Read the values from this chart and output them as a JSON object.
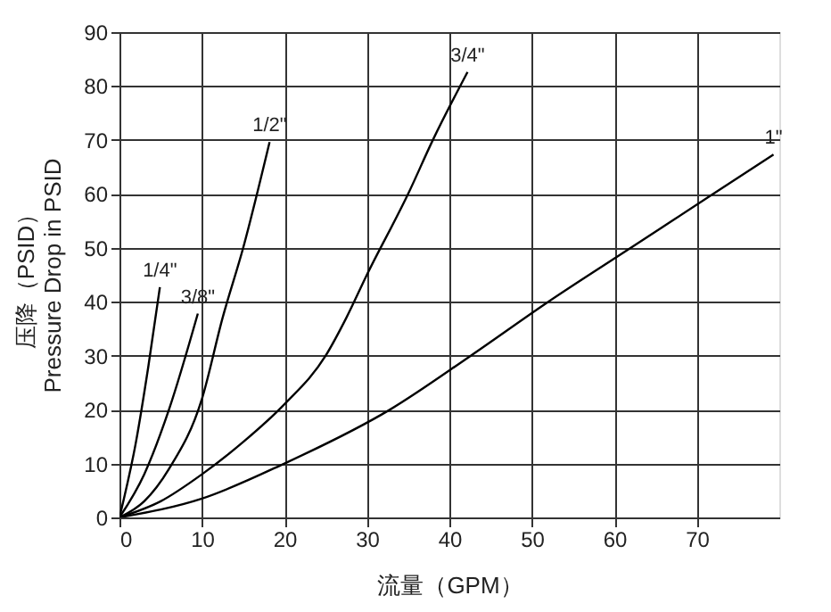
{
  "chart_data": {
    "type": "line",
    "xlabel": "流量（GPM）",
    "ylabel": "压降（PSID）\nPressure Drop in PSID",
    "xlim": [
      0,
      80
    ],
    "xticks": [
      0,
      10,
      20,
      30,
      40,
      50,
      60,
      70
    ],
    "ylim": [
      0,
      90
    ],
    "yticks": [
      0,
      10,
      20,
      30,
      40,
      50,
      60,
      70,
      80,
      90
    ],
    "grid": true,
    "legend": false,
    "marker": "none",
    "line_style": "solid",
    "series": [
      {
        "name": "1/4\"",
        "color": "#000000",
        "x": [
          0,
          2,
          3.5,
          4.9
        ],
        "values": [
          0,
          14,
          28,
          42.7
        ]
      },
      {
        "name": "3/8\"",
        "color": "#000000",
        "x": [
          0,
          3,
          6,
          9.5
        ],
        "values": [
          0,
          8,
          20,
          37.8
        ]
      },
      {
        "name": "1/2\"",
        "color": "#000000",
        "x": [
          0,
          3,
          6,
          10,
          12.5,
          15,
          18.2
        ],
        "values": [
          0,
          3,
          9,
          22,
          37,
          50,
          69.6
        ]
      },
      {
        "name": "3/4\"",
        "color": "#000000",
        "x": [
          0,
          5,
          10,
          15,
          20,
          25,
          27.5,
          30,
          35,
          38,
          42.2
        ],
        "values": [
          0,
          3,
          8,
          14,
          21,
          30,
          37,
          45,
          60,
          70,
          82.6
        ]
      },
      {
        "name": "1\"",
        "color": "#000000",
        "x": [
          0,
          10,
          20,
          32.8,
          42.6,
          52,
          62,
          72,
          79.3
        ],
        "values": [
          0,
          3.5,
          10,
          20,
          30,
          40,
          50,
          60,
          67.3
        ]
      }
    ]
  }
}
